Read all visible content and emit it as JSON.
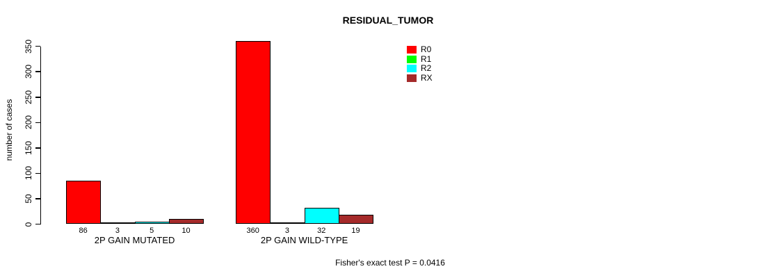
{
  "chart_data": {
    "type": "bar",
    "title": "RESIDUAL_TUMOR",
    "xlabel": "",
    "ylabel": "number of cases",
    "ylim": [
      0,
      350
    ],
    "yticks": [
      0,
      50,
      100,
      150,
      200,
      250,
      300,
      350
    ],
    "grid": false,
    "legend_position": "top-right",
    "categories": [
      "2P GAIN MUTATED",
      "2P GAIN WILD-TYPE"
    ],
    "series": [
      {
        "name": "R0",
        "color": "#FF0000",
        "values": [
          86,
          360
        ]
      },
      {
        "name": "R1",
        "color": "#00FF00",
        "values": [
          3,
          3
        ]
      },
      {
        "name": "R2",
        "color": "#00FFFF",
        "values": [
          5,
          32
        ]
      },
      {
        "name": "RX",
        "color": "#A52A2A",
        "values": [
          10,
          19
        ]
      }
    ],
    "bar_value_labels": [
      [
        86,
        3,
        5,
        10
      ],
      [
        360,
        3,
        32,
        19
      ]
    ],
    "annotation": "Fisher's exact test P = 0.0416",
    "colors": {
      "bar_border": "#000000",
      "axis": "#000000",
      "text": "#000000",
      "background": "#FFFFFF"
    }
  }
}
